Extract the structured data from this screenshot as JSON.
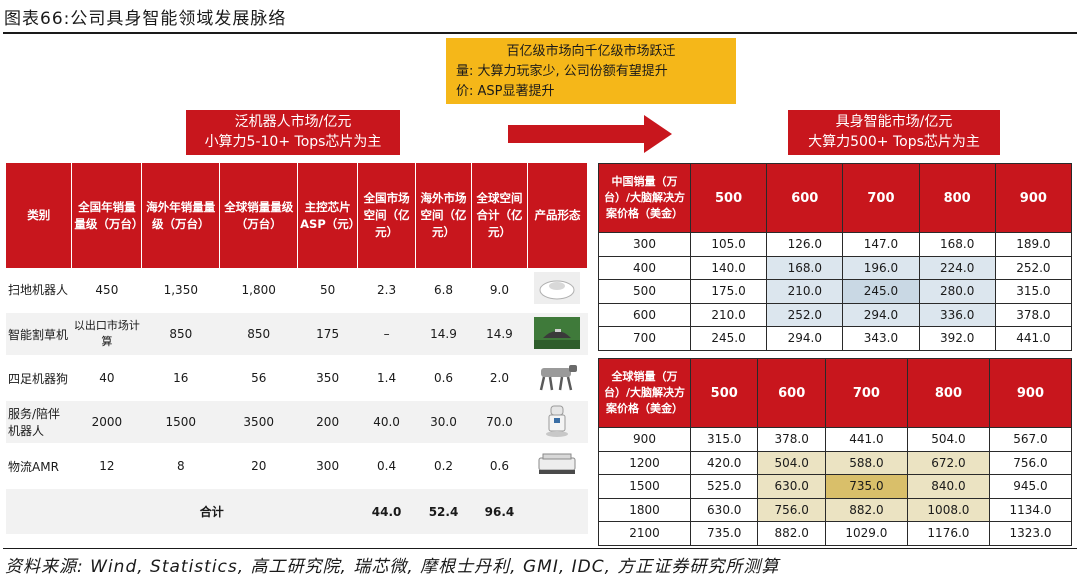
{
  "figure_title": "图表66:公司具身智能领域发展脉络",
  "yellow_box": {
    "line1": "百亿级市场向千亿级市场跃迁",
    "line2": "量: 大算力玩家少, 公司份额有望提升",
    "line3": "价: ASP显著提升"
  },
  "left_banner": {
    "line1": "泛机器人市场/亿元",
    "line2": "小算力5-10+ Tops芯片为主"
  },
  "right_banner": {
    "line1": "具身智能市场/亿元",
    "line2": "大算力500+ Tops芯片为主"
  },
  "left_table": {
    "headers": [
      "类别",
      "全国年销量量级（万台）",
      "海外年销量量级（万台）",
      "全球销量量级（万台）",
      "主控芯片ASP（元）",
      "全国市场空间（亿元）",
      "海外市场空间（亿元）",
      "全球空间合计（亿元）",
      "产品形态"
    ],
    "rows": [
      [
        "扫地机器人",
        "450",
        "1,350",
        "1,800",
        "50",
        "2.3",
        "6.8",
        "9.0"
      ],
      [
        "智能割草机",
        "以出口市场计算",
        "850",
        "850",
        "175",
        "–",
        "14.9",
        "14.9"
      ],
      [
        "四足机器狗",
        "40",
        "16",
        "56",
        "350",
        "1.4",
        "0.6",
        "2.0"
      ],
      [
        "服务/陪伴机器人",
        "2000",
        "1500",
        "3500",
        "200",
        "40.0",
        "30.0",
        "70.0"
      ],
      [
        "物流AMR",
        "12",
        "8",
        "20",
        "300",
        "0.4",
        "0.2",
        "0.6"
      ]
    ],
    "total": {
      "label": "合计",
      "v1": "44.0",
      "v2": "52.4",
      "v3": "96.4"
    }
  },
  "right_table_1": {
    "header": "中国销量（万台）/大脑解决方案价格（美金）",
    "cols": [
      "500",
      "600",
      "700",
      "800",
      "900"
    ],
    "rows": [
      [
        "300",
        "105.0",
        "126.0",
        "147.0",
        "168.0",
        "189.0"
      ],
      [
        "400",
        "140.0",
        "168.0",
        "196.0",
        "224.0",
        "252.0"
      ],
      [
        "500",
        "175.0",
        "210.0",
        "245.0",
        "280.0",
        "315.0"
      ],
      [
        "600",
        "210.0",
        "252.0",
        "294.0",
        "336.0",
        "378.0"
      ],
      [
        "700",
        "245.0",
        "294.0",
        "343.0",
        "392.0",
        "441.0"
      ]
    ]
  },
  "right_table_2": {
    "header": "全球销量（万台）/大脑解决方案价格（美金）",
    "cols": [
      "500",
      "600",
      "700",
      "800",
      "900"
    ],
    "rows": [
      [
        "900",
        "315.0",
        "378.0",
        "441.0",
        "504.0",
        "567.0"
      ],
      [
        "1200",
        "420.0",
        "504.0",
        "588.0",
        "672.0",
        "756.0"
      ],
      [
        "1500",
        "525.0",
        "630.0",
        "735.0",
        "840.0",
        "945.0"
      ],
      [
        "1800",
        "630.0",
        "756.0",
        "882.0",
        "1008.0",
        "1134.0"
      ],
      [
        "2100",
        "735.0",
        "882.0",
        "1029.0",
        "1176.0",
        "1323.0"
      ]
    ]
  },
  "source": "资料来源: Wind, Statistics, 高工研究院, 瑞芯微, 摩根士丹利, GMI, IDC, 方正证券研究所测算",
  "colors": {
    "red": "#c8161d",
    "yellow": "#f5b719",
    "blue_highlight": "#dce6ee",
    "gold_light": "#ebe3c2",
    "gold_dark": "#d9bf6a"
  }
}
